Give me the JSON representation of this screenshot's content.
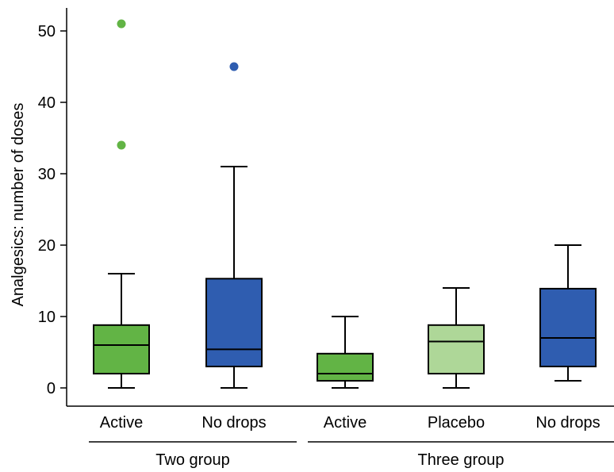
{
  "chart_data": {
    "type": "box",
    "ylabel": "Analgesics: number of doses",
    "ylim": [
      0,
      52
    ],
    "yticks": [
      0,
      10,
      20,
      30,
      40,
      50
    ],
    "groups": [
      {
        "label": "Two group",
        "categories": [
          0,
          1
        ]
      },
      {
        "label": "Three group",
        "categories": [
          2,
          3,
          4
        ]
      }
    ],
    "categories": [
      "Active",
      "No drops",
      "Active",
      "Placebo",
      "No drops"
    ],
    "boxes": [
      {
        "category": "Active",
        "group": "Two group",
        "min": 0,
        "q1": 2,
        "median": 6,
        "q3": 8.8,
        "max": 16,
        "outliers": [
          34,
          51
        ],
        "color": "#62b445"
      },
      {
        "category": "No drops",
        "group": "Two group",
        "min": 0,
        "q1": 3,
        "median": 5.4,
        "q3": 15.3,
        "max": 31,
        "outliers": [
          45
        ],
        "color": "#2f5db0"
      },
      {
        "category": "Active",
        "group": "Three group",
        "min": 0,
        "q1": 1,
        "median": 2,
        "q3": 4.8,
        "max": 10,
        "outliers": [],
        "color": "#62b445"
      },
      {
        "category": "Placebo",
        "group": "Three group",
        "min": 0,
        "q1": 2,
        "median": 6.5,
        "q3": 8.8,
        "max": 14,
        "outliers": [],
        "color": "#aed798"
      },
      {
        "category": "No drops",
        "group": "Three group",
        "min": 1,
        "q1": 3,
        "median": 7,
        "q3": 13.9,
        "max": 20,
        "outliers": [],
        "color": "#2f5db0"
      }
    ],
    "grid": false,
    "legend": "none"
  }
}
